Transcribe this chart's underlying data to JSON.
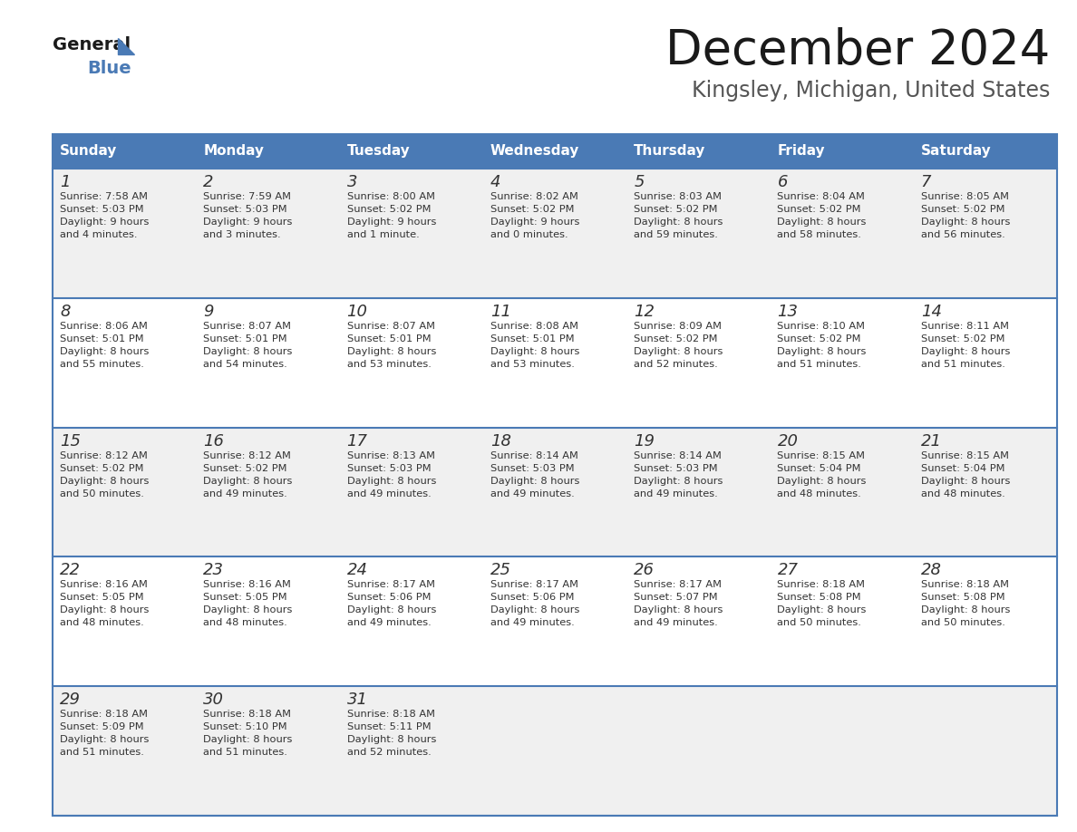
{
  "title": "December 2024",
  "subtitle": "Kingsley, Michigan, United States",
  "header_color": "#4a7ab5",
  "header_text_color": "#ffffff",
  "day_names": [
    "Sunday",
    "Monday",
    "Tuesday",
    "Wednesday",
    "Thursday",
    "Friday",
    "Saturday"
  ],
  "cell_bg_even": "#f0f0f0",
  "cell_bg_odd": "#ffffff",
  "cell_border_color": "#4a7ab5",
  "title_color": "#1a1a1a",
  "subtitle_color": "#555555",
  "date_color": "#333333",
  "info_color": "#333333",
  "weeks": [
    [
      {
        "day": 1,
        "sunrise": "7:58 AM",
        "sunset": "5:03 PM",
        "daylight": "9 hours\nand 4 minutes."
      },
      {
        "day": 2,
        "sunrise": "7:59 AM",
        "sunset": "5:03 PM",
        "daylight": "9 hours\nand 3 minutes."
      },
      {
        "day": 3,
        "sunrise": "8:00 AM",
        "sunset": "5:02 PM",
        "daylight": "9 hours\nand 1 minute."
      },
      {
        "day": 4,
        "sunrise": "8:02 AM",
        "sunset": "5:02 PM",
        "daylight": "9 hours\nand 0 minutes."
      },
      {
        "day": 5,
        "sunrise": "8:03 AM",
        "sunset": "5:02 PM",
        "daylight": "8 hours\nand 59 minutes."
      },
      {
        "day": 6,
        "sunrise": "8:04 AM",
        "sunset": "5:02 PM",
        "daylight": "8 hours\nand 58 minutes."
      },
      {
        "day": 7,
        "sunrise": "8:05 AM",
        "sunset": "5:02 PM",
        "daylight": "8 hours\nand 56 minutes."
      }
    ],
    [
      {
        "day": 8,
        "sunrise": "8:06 AM",
        "sunset": "5:01 PM",
        "daylight": "8 hours\nand 55 minutes."
      },
      {
        "day": 9,
        "sunrise": "8:07 AM",
        "sunset": "5:01 PM",
        "daylight": "8 hours\nand 54 minutes."
      },
      {
        "day": 10,
        "sunrise": "8:07 AM",
        "sunset": "5:01 PM",
        "daylight": "8 hours\nand 53 minutes."
      },
      {
        "day": 11,
        "sunrise": "8:08 AM",
        "sunset": "5:01 PM",
        "daylight": "8 hours\nand 53 minutes."
      },
      {
        "day": 12,
        "sunrise": "8:09 AM",
        "sunset": "5:02 PM",
        "daylight": "8 hours\nand 52 minutes."
      },
      {
        "day": 13,
        "sunrise": "8:10 AM",
        "sunset": "5:02 PM",
        "daylight": "8 hours\nand 51 minutes."
      },
      {
        "day": 14,
        "sunrise": "8:11 AM",
        "sunset": "5:02 PM",
        "daylight": "8 hours\nand 51 minutes."
      }
    ],
    [
      {
        "day": 15,
        "sunrise": "8:12 AM",
        "sunset": "5:02 PM",
        "daylight": "8 hours\nand 50 minutes."
      },
      {
        "day": 16,
        "sunrise": "8:12 AM",
        "sunset": "5:02 PM",
        "daylight": "8 hours\nand 49 minutes."
      },
      {
        "day": 17,
        "sunrise": "8:13 AM",
        "sunset": "5:03 PM",
        "daylight": "8 hours\nand 49 minutes."
      },
      {
        "day": 18,
        "sunrise": "8:14 AM",
        "sunset": "5:03 PM",
        "daylight": "8 hours\nand 49 minutes."
      },
      {
        "day": 19,
        "sunrise": "8:14 AM",
        "sunset": "5:03 PM",
        "daylight": "8 hours\nand 49 minutes."
      },
      {
        "day": 20,
        "sunrise": "8:15 AM",
        "sunset": "5:04 PM",
        "daylight": "8 hours\nand 48 minutes."
      },
      {
        "day": 21,
        "sunrise": "8:15 AM",
        "sunset": "5:04 PM",
        "daylight": "8 hours\nand 48 minutes."
      }
    ],
    [
      {
        "day": 22,
        "sunrise": "8:16 AM",
        "sunset": "5:05 PM",
        "daylight": "8 hours\nand 48 minutes."
      },
      {
        "day": 23,
        "sunrise": "8:16 AM",
        "sunset": "5:05 PM",
        "daylight": "8 hours\nand 48 minutes."
      },
      {
        "day": 24,
        "sunrise": "8:17 AM",
        "sunset": "5:06 PM",
        "daylight": "8 hours\nand 49 minutes."
      },
      {
        "day": 25,
        "sunrise": "8:17 AM",
        "sunset": "5:06 PM",
        "daylight": "8 hours\nand 49 minutes."
      },
      {
        "day": 26,
        "sunrise": "8:17 AM",
        "sunset": "5:07 PM",
        "daylight": "8 hours\nand 49 minutes."
      },
      {
        "day": 27,
        "sunrise": "8:18 AM",
        "sunset": "5:08 PM",
        "daylight": "8 hours\nand 50 minutes."
      },
      {
        "day": 28,
        "sunrise": "8:18 AM",
        "sunset": "5:08 PM",
        "daylight": "8 hours\nand 50 minutes."
      }
    ],
    [
      {
        "day": 29,
        "sunrise": "8:18 AM",
        "sunset": "5:09 PM",
        "daylight": "8 hours\nand 51 minutes."
      },
      {
        "day": 30,
        "sunrise": "8:18 AM",
        "sunset": "5:10 PM",
        "daylight": "8 hours\nand 51 minutes."
      },
      {
        "day": 31,
        "sunrise": "8:18 AM",
        "sunset": "5:11 PM",
        "daylight": "8 hours\nand 52 minutes."
      },
      null,
      null,
      null,
      null
    ]
  ]
}
